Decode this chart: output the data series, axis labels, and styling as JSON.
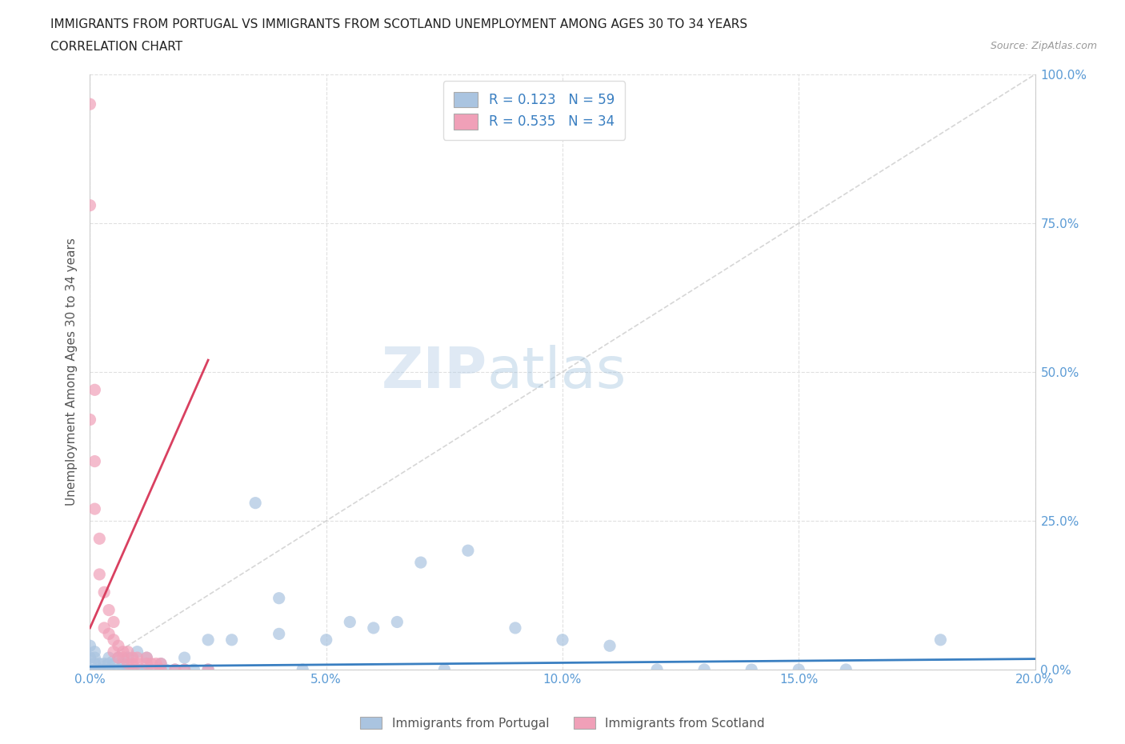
{
  "title_line1": "IMMIGRANTS FROM PORTUGAL VS IMMIGRANTS FROM SCOTLAND UNEMPLOYMENT AMONG AGES 30 TO 34 YEARS",
  "title_line2": "CORRELATION CHART",
  "source": "Source: ZipAtlas.com",
  "xlabel_bottom": "Immigrants from Portugal",
  "xlabel_bottom2": "Immigrants from Scotland",
  "ylabel": "Unemployment Among Ages 30 to 34 years",
  "xlim": [
    0.0,
    0.2
  ],
  "ylim": [
    0.0,
    1.0
  ],
  "xticks": [
    0.0,
    0.05,
    0.1,
    0.15,
    0.2
  ],
  "yticks": [
    0.0,
    0.25,
    0.5,
    0.75,
    1.0
  ],
  "xticklabels": [
    "0.0%",
    "5.0%",
    "10.0%",
    "15.0%",
    "20.0%"
  ],
  "yticklabels_right": [
    "0.0%",
    "25.0%",
    "50.0%",
    "75.0%",
    "100.0%"
  ],
  "portugal_color": "#aac4e0",
  "scotland_color": "#f0a0b8",
  "portugal_trend_color": "#3a7fc1",
  "scotland_trend_color": "#d94060",
  "legend_portugal_R": "0.123",
  "legend_portugal_N": "59",
  "legend_scotland_R": "0.535",
  "legend_scotland_N": "34",
  "watermark_zip": "ZIP",
  "watermark_atlas": "atlas",
  "title_fontsize": 11,
  "tick_fontsize": 11,
  "ylabel_fontsize": 11,
  "portugal_scatter_x": [
    0.0,
    0.0,
    0.0,
    0.001,
    0.001,
    0.001,
    0.001,
    0.002,
    0.002,
    0.003,
    0.003,
    0.004,
    0.004,
    0.004,
    0.005,
    0.005,
    0.006,
    0.006,
    0.007,
    0.007,
    0.008,
    0.008,
    0.009,
    0.01,
    0.01,
    0.011,
    0.012,
    0.012,
    0.013,
    0.015,
    0.015,
    0.016,
    0.018,
    0.02,
    0.02,
    0.022,
    0.025,
    0.025,
    0.03,
    0.035,
    0.04,
    0.04,
    0.045,
    0.05,
    0.055,
    0.06,
    0.065,
    0.07,
    0.075,
    0.08,
    0.09,
    0.1,
    0.11,
    0.12,
    0.13,
    0.14,
    0.15,
    0.16,
    0.18
  ],
  "portugal_scatter_y": [
    0.0,
    0.02,
    0.04,
    0.0,
    0.01,
    0.02,
    0.03,
    0.0,
    0.01,
    0.0,
    0.01,
    0.0,
    0.01,
    0.02,
    0.0,
    0.01,
    0.0,
    0.02,
    0.0,
    0.01,
    0.0,
    0.02,
    0.0,
    0.0,
    0.03,
    0.0,
    0.0,
    0.02,
    0.0,
    0.0,
    0.01,
    0.0,
    0.0,
    0.0,
    0.02,
    0.0,
    0.0,
    0.05,
    0.05,
    0.28,
    0.06,
    0.12,
    0.0,
    0.05,
    0.08,
    0.07,
    0.08,
    0.18,
    0.0,
    0.2,
    0.07,
    0.05,
    0.04,
    0.0,
    0.0,
    0.0,
    0.0,
    0.0,
    0.05
  ],
  "scotland_scatter_x": [
    0.0,
    0.0,
    0.0,
    0.001,
    0.001,
    0.001,
    0.002,
    0.002,
    0.003,
    0.003,
    0.004,
    0.004,
    0.005,
    0.005,
    0.005,
    0.006,
    0.006,
    0.007,
    0.007,
    0.008,
    0.008,
    0.009,
    0.009,
    0.01,
    0.01,
    0.012,
    0.012,
    0.013,
    0.014,
    0.015,
    0.015,
    0.018,
    0.02,
    0.025
  ],
  "scotland_scatter_y": [
    0.95,
    0.78,
    0.42,
    0.47,
    0.35,
    0.27,
    0.22,
    0.16,
    0.13,
    0.07,
    0.1,
    0.06,
    0.08,
    0.05,
    0.03,
    0.04,
    0.02,
    0.03,
    0.02,
    0.03,
    0.01,
    0.02,
    0.01,
    0.02,
    0.01,
    0.02,
    0.01,
    0.01,
    0.01,
    0.01,
    0.0,
    0.0,
    0.0,
    0.0
  ],
  "portugal_trend_x0": 0.0,
  "portugal_trend_x1": 0.2,
  "portugal_trend_y0": 0.005,
  "portugal_trend_y1": 0.018,
  "scotland_trend_x0": 0.0,
  "scotland_trend_x1": 0.025,
  "scotland_trend_y0": 0.07,
  "scotland_trend_y1": 0.52,
  "ref_line_x0": 0.0,
  "ref_line_x1": 0.2,
  "ref_line_y0": 0.0,
  "ref_line_y1": 1.0
}
